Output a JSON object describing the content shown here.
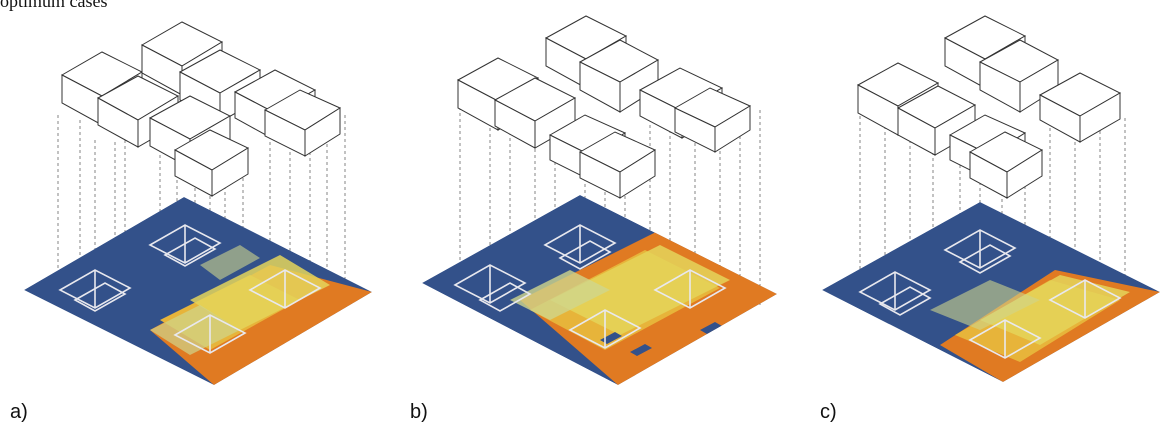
{
  "heading": "optimum cases",
  "panels": [
    {
      "label": "a)"
    },
    {
      "label": "b)"
    },
    {
      "label": "c)"
    }
  ],
  "colors": {
    "floor_base": "#33518a",
    "hot": "#e07a22",
    "warm": "#e7b43a",
    "yellow": "#e4d55a",
    "pale": "#cfd68c",
    "furniture_line": "#333333",
    "partition_outline": "#e8e8ee",
    "dashed_line": "#666666"
  }
}
